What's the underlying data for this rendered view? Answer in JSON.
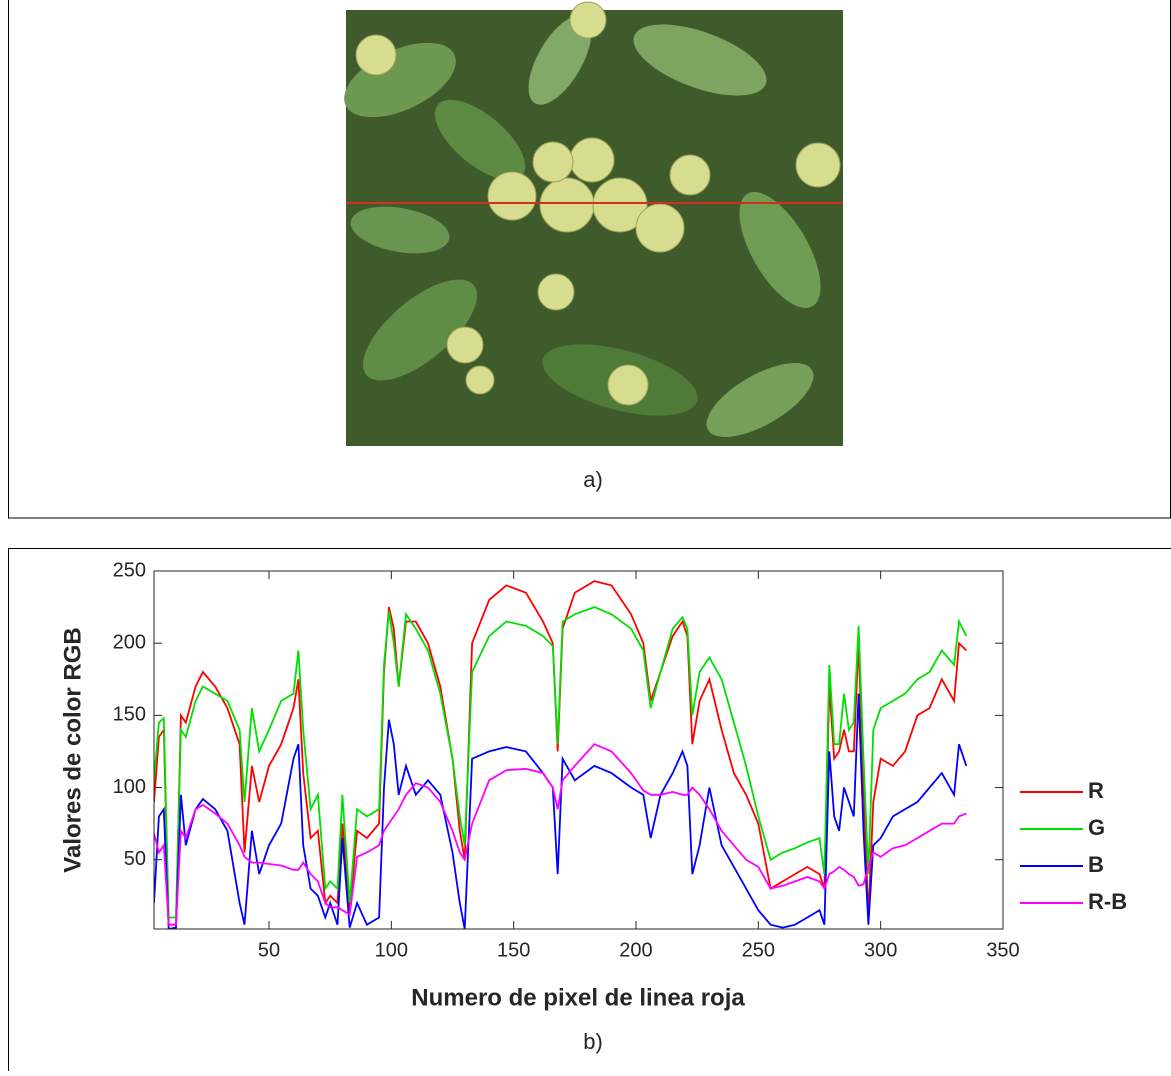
{
  "panels": {
    "a": "a)",
    "b": "b)"
  },
  "chart_data": {
    "type": "line",
    "x_label": "Numero de pixel de linea roja",
    "y_label": "Valores de color RGB",
    "x": [
      3,
      5,
      7,
      9,
      12,
      14,
      16,
      20,
      23,
      28,
      33,
      38,
      40,
      43,
      46,
      50,
      55,
      60,
      62,
      64,
      67,
      70,
      73,
      75,
      78,
      80,
      83,
      86,
      90,
      95,
      97,
      99,
      101,
      103,
      106,
      110,
      115,
      120,
      125,
      128,
      130,
      133,
      140,
      147,
      155,
      162,
      166,
      168,
      170,
      175,
      183,
      190,
      198,
      203,
      206,
      210,
      215,
      219,
      221,
      223,
      226,
      230,
      235,
      240,
      245,
      250,
      255,
      260,
      265,
      270,
      275,
      277,
      279,
      281,
      283,
      285,
      287,
      289,
      291,
      293,
      295,
      297,
      300,
      305,
      310,
      315,
      320,
      325,
      330,
      332,
      335
    ],
    "series": [
      {
        "name": "R",
        "color": "#ff0000",
        "values": [
          90,
          135,
          140,
          5,
          5,
          150,
          145,
          170,
          180,
          170,
          155,
          130,
          55,
          115,
          90,
          115,
          130,
          155,
          175,
          110,
          65,
          70,
          20,
          25,
          20,
          75,
          15,
          70,
          65,
          75,
          180,
          225,
          210,
          170,
          215,
          215,
          200,
          170,
          120,
          70,
          50,
          200,
          230,
          240,
          235,
          215,
          200,
          125,
          210,
          235,
          243,
          240,
          220,
          200,
          160,
          180,
          205,
          215,
          205,
          130,
          160,
          175,
          140,
          110,
          95,
          75,
          30,
          35,
          40,
          45,
          40,
          30,
          170,
          120,
          125,
          140,
          125,
          125,
          200,
          100,
          10,
          90,
          120,
          115,
          125,
          150,
          155,
          175,
          160,
          200,
          195
        ]
      },
      {
        "name": "G",
        "color": "#00e000",
        "values": [
          105,
          145,
          148,
          10,
          10,
          140,
          135,
          160,
          170,
          165,
          160,
          140,
          90,
          155,
          125,
          140,
          160,
          165,
          195,
          140,
          85,
          95,
          30,
          35,
          30,
          95,
          20,
          85,
          80,
          85,
          185,
          222,
          200,
          170,
          220,
          210,
          195,
          165,
          120,
          80,
          60,
          180,
          205,
          215,
          212,
          205,
          198,
          130,
          215,
          220,
          225,
          220,
          210,
          195,
          155,
          180,
          210,
          218,
          210,
          150,
          180,
          190,
          175,
          145,
          115,
          80,
          50,
          55,
          58,
          62,
          65,
          40,
          185,
          130,
          130,
          165,
          140,
          145,
          212,
          120,
          40,
          140,
          155,
          160,
          165,
          175,
          180,
          195,
          185,
          215,
          205
        ]
      },
      {
        "name": "B",
        "color": "#0000ff",
        "values": [
          20,
          80,
          85,
          2,
          3,
          95,
          60,
          85,
          92,
          85,
          70,
          20,
          5,
          70,
          40,
          60,
          75,
          120,
          130,
          60,
          30,
          25,
          10,
          20,
          5,
          65,
          3,
          20,
          5,
          10,
          100,
          147,
          130,
          95,
          115,
          95,
          105,
          95,
          55,
          20,
          2,
          120,
          125,
          128,
          125,
          110,
          100,
          40,
          120,
          105,
          115,
          110,
          100,
          95,
          65,
          95,
          110,
          125,
          115,
          40,
          60,
          100,
          60,
          45,
          30,
          15,
          5,
          3,
          5,
          10,
          15,
          5,
          125,
          80,
          70,
          100,
          90,
          80,
          165,
          70,
          5,
          60,
          65,
          80,
          85,
          90,
          100,
          110,
          95,
          130,
          115
        ]
      },
      {
        "name": "R-B",
        "color": "#ff00ff",
        "values": [
          68,
          55,
          60,
          5,
          5,
          70,
          65,
          85,
          88,
          82,
          75,
          60,
          52,
          48,
          48,
          47,
          46,
          43,
          43,
          48,
          40,
          35,
          20,
          17,
          17,
          15,
          12,
          52,
          55,
          60,
          70,
          75,
          80,
          85,
          95,
          103,
          100,
          90,
          70,
          55,
          50,
          75,
          105,
          112,
          113,
          110,
          100,
          85,
          105,
          115,
          130,
          125,
          110,
          98,
          95,
          95,
          97,
          95,
          95,
          100,
          95,
          85,
          70,
          60,
          50,
          45,
          30,
          32,
          35,
          38,
          35,
          30,
          40,
          42,
          45,
          43,
          40,
          38,
          32,
          33,
          45,
          55,
          52,
          58,
          60,
          65,
          70,
          75,
          75,
          80,
          82
        ]
      }
    ],
    "xlim": [
      3,
      350
    ],
    "xticks": [
      50,
      100,
      150,
      200,
      250,
      300,
      350
    ],
    "ylim": [
      2,
      250
    ],
    "yticks": [
      50,
      100,
      150,
      200,
      250
    ],
    "grid": false
  }
}
